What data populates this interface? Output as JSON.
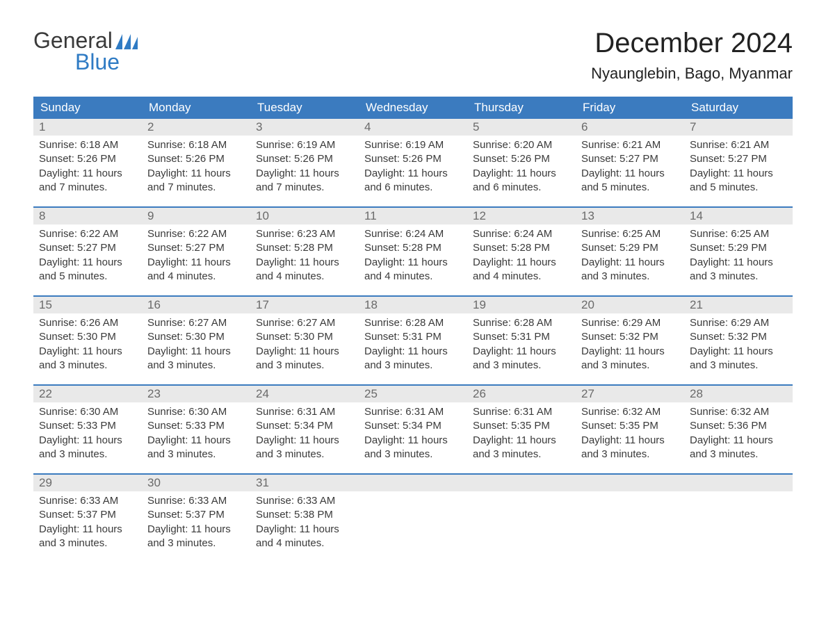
{
  "brand": {
    "word1": "General",
    "word2": "Blue",
    "logo_color": "#2f7bc4"
  },
  "title": "December 2024",
  "location": "Nyaunglebin, Bago, Myanmar",
  "colors": {
    "header_bg": "#3b7bbf",
    "header_text": "#ffffff",
    "daynum_bg": "#e9e9e9",
    "daynum_text": "#6a6a6a",
    "body_text": "#3a3a3a",
    "page_bg": "#ffffff",
    "week_divider": "#3b7bbf"
  },
  "typography": {
    "title_fontsize": 40,
    "location_fontsize": 22,
    "weekday_fontsize": 17,
    "daynum_fontsize": 17,
    "body_fontsize": 15
  },
  "weekdays": [
    "Sunday",
    "Monday",
    "Tuesday",
    "Wednesday",
    "Thursday",
    "Friday",
    "Saturday"
  ],
  "labels": {
    "sunrise": "Sunrise:",
    "sunset": "Sunset:",
    "daylight": "Daylight:"
  },
  "weeks": [
    [
      {
        "n": "1",
        "sunrise": "6:18 AM",
        "sunset": "5:26 PM",
        "daylight": "11 hours and 7 minutes."
      },
      {
        "n": "2",
        "sunrise": "6:18 AM",
        "sunset": "5:26 PM",
        "daylight": "11 hours and 7 minutes."
      },
      {
        "n": "3",
        "sunrise": "6:19 AM",
        "sunset": "5:26 PM",
        "daylight": "11 hours and 7 minutes."
      },
      {
        "n": "4",
        "sunrise": "6:19 AM",
        "sunset": "5:26 PM",
        "daylight": "11 hours and 6 minutes."
      },
      {
        "n": "5",
        "sunrise": "6:20 AM",
        "sunset": "5:26 PM",
        "daylight": "11 hours and 6 minutes."
      },
      {
        "n": "6",
        "sunrise": "6:21 AM",
        "sunset": "5:27 PM",
        "daylight": "11 hours and 5 minutes."
      },
      {
        "n": "7",
        "sunrise": "6:21 AM",
        "sunset": "5:27 PM",
        "daylight": "11 hours and 5 minutes."
      }
    ],
    [
      {
        "n": "8",
        "sunrise": "6:22 AM",
        "sunset": "5:27 PM",
        "daylight": "11 hours and 5 minutes."
      },
      {
        "n": "9",
        "sunrise": "6:22 AM",
        "sunset": "5:27 PM",
        "daylight": "11 hours and 4 minutes."
      },
      {
        "n": "10",
        "sunrise": "6:23 AM",
        "sunset": "5:28 PM",
        "daylight": "11 hours and 4 minutes."
      },
      {
        "n": "11",
        "sunrise": "6:24 AM",
        "sunset": "5:28 PM",
        "daylight": "11 hours and 4 minutes."
      },
      {
        "n": "12",
        "sunrise": "6:24 AM",
        "sunset": "5:28 PM",
        "daylight": "11 hours and 4 minutes."
      },
      {
        "n": "13",
        "sunrise": "6:25 AM",
        "sunset": "5:29 PM",
        "daylight": "11 hours and 3 minutes."
      },
      {
        "n": "14",
        "sunrise": "6:25 AM",
        "sunset": "5:29 PM",
        "daylight": "11 hours and 3 minutes."
      }
    ],
    [
      {
        "n": "15",
        "sunrise": "6:26 AM",
        "sunset": "5:30 PM",
        "daylight": "11 hours and 3 minutes."
      },
      {
        "n": "16",
        "sunrise": "6:27 AM",
        "sunset": "5:30 PM",
        "daylight": "11 hours and 3 minutes."
      },
      {
        "n": "17",
        "sunrise": "6:27 AM",
        "sunset": "5:30 PM",
        "daylight": "11 hours and 3 minutes."
      },
      {
        "n": "18",
        "sunrise": "6:28 AM",
        "sunset": "5:31 PM",
        "daylight": "11 hours and 3 minutes."
      },
      {
        "n": "19",
        "sunrise": "6:28 AM",
        "sunset": "5:31 PM",
        "daylight": "11 hours and 3 minutes."
      },
      {
        "n": "20",
        "sunrise": "6:29 AM",
        "sunset": "5:32 PM",
        "daylight": "11 hours and 3 minutes."
      },
      {
        "n": "21",
        "sunrise": "6:29 AM",
        "sunset": "5:32 PM",
        "daylight": "11 hours and 3 minutes."
      }
    ],
    [
      {
        "n": "22",
        "sunrise": "6:30 AM",
        "sunset": "5:33 PM",
        "daylight": "11 hours and 3 minutes."
      },
      {
        "n": "23",
        "sunrise": "6:30 AM",
        "sunset": "5:33 PM",
        "daylight": "11 hours and 3 minutes."
      },
      {
        "n": "24",
        "sunrise": "6:31 AM",
        "sunset": "5:34 PM",
        "daylight": "11 hours and 3 minutes."
      },
      {
        "n": "25",
        "sunrise": "6:31 AM",
        "sunset": "5:34 PM",
        "daylight": "11 hours and 3 minutes."
      },
      {
        "n": "26",
        "sunrise": "6:31 AM",
        "sunset": "5:35 PM",
        "daylight": "11 hours and 3 minutes."
      },
      {
        "n": "27",
        "sunrise": "6:32 AM",
        "sunset": "5:35 PM",
        "daylight": "11 hours and 3 minutes."
      },
      {
        "n": "28",
        "sunrise": "6:32 AM",
        "sunset": "5:36 PM",
        "daylight": "11 hours and 3 minutes."
      }
    ],
    [
      {
        "n": "29",
        "sunrise": "6:33 AM",
        "sunset": "5:37 PM",
        "daylight": "11 hours and 3 minutes."
      },
      {
        "n": "30",
        "sunrise": "6:33 AM",
        "sunset": "5:37 PM",
        "daylight": "11 hours and 3 minutes."
      },
      {
        "n": "31",
        "sunrise": "6:33 AM",
        "sunset": "5:38 PM",
        "daylight": "11 hours and 4 minutes."
      },
      {
        "empty": true
      },
      {
        "empty": true
      },
      {
        "empty": true
      },
      {
        "empty": true
      }
    ]
  ]
}
